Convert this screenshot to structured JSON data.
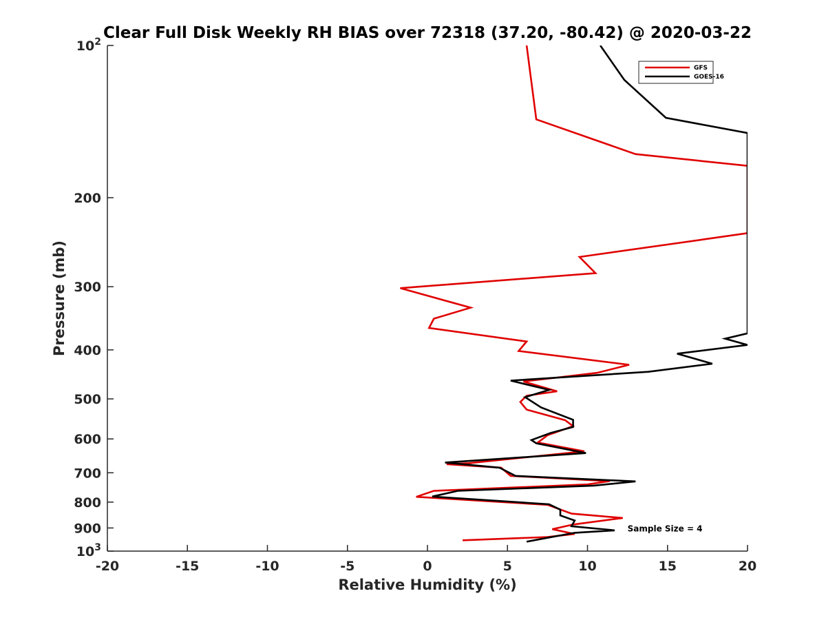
{
  "chart_data": {
    "type": "line",
    "title": "Clear Full Disk Weekly RH BIAS over 72318 (37.20, -80.42) @ 2020-03-22",
    "xlabel": "Relative Humidity (%)",
    "ylabel": "Pressure (mb)",
    "xlim": [
      -20,
      20
    ],
    "ylim": [
      100,
      1000
    ],
    "y_scale": "log",
    "y_reversed": true,
    "x_ticks": [
      -20,
      -15,
      -10,
      -5,
      0,
      5,
      10,
      15,
      20
    ],
    "x_tick_labels": [
      "-20",
      "-15",
      "-10",
      "-5",
      "0",
      "5",
      "10",
      "15",
      "20"
    ],
    "y_ticks": [
      200,
      300,
      400,
      500,
      600,
      700,
      800,
      900
    ],
    "y_tick_labels": [
      "200",
      "300",
      "400",
      "500",
      "600",
      "700",
      "800",
      "900"
    ],
    "y_power_labels": [
      {
        "value": 100,
        "base": "10",
        "exp": "2"
      },
      {
        "value": 1000,
        "base": "10",
        "exp": "3"
      }
    ],
    "grid": false,
    "legend_position": "top-right",
    "series": [
      {
        "name": "GFS",
        "color": "#e00000",
        "points": [
          [
            6.2,
            100
          ],
          [
            6.8,
            140
          ],
          [
            13.0,
            164
          ],
          [
            20.0,
            173
          ],
          [
            20.0,
            179
          ],
          [
            20.0,
            235
          ],
          [
            17.2,
            242
          ],
          [
            9.5,
            262
          ],
          [
            10.5,
            282
          ],
          [
            -1.7,
            302
          ],
          [
            2.7,
            330
          ],
          [
            0.4,
            347
          ],
          [
            0.1,
            362
          ],
          [
            6.2,
            385
          ],
          [
            5.7,
            402
          ],
          [
            12.6,
            428
          ],
          [
            10.6,
            444
          ],
          [
            6.0,
            462
          ],
          [
            8.1,
            483
          ],
          [
            6.2,
            493
          ],
          [
            5.8,
            507
          ],
          [
            6.2,
            525
          ],
          [
            8.6,
            551
          ],
          [
            9.1,
            566
          ],
          [
            7.5,
            590
          ],
          [
            6.9,
            610
          ],
          [
            9.8,
            635
          ],
          [
            2.6,
            670
          ],
          [
            1.2,
            673
          ],
          [
            4.6,
            684
          ],
          [
            5.2,
            710
          ],
          [
            11.4,
            727
          ],
          [
            10.0,
            738
          ],
          [
            0.4,
            760
          ],
          [
            -0.7,
            781
          ],
          [
            7.5,
            810
          ],
          [
            9.0,
            843
          ],
          [
            12.2,
            860
          ],
          [
            9.1,
            886
          ],
          [
            7.8,
            905
          ],
          [
            9.2,
            925
          ],
          [
            7.5,
            938
          ],
          [
            2.2,
            952
          ]
        ]
      },
      {
        "name": "GOES-16",
        "color": "#000000",
        "points": [
          [
            10.8,
            100
          ],
          [
            12.3,
            117
          ],
          [
            14.9,
            139
          ],
          [
            20.0,
            149
          ],
          [
            20.0,
            371
          ],
          [
            18.6,
            380
          ],
          [
            20.0,
            391
          ],
          [
            15.6,
            407
          ],
          [
            17.8,
            426
          ],
          [
            13.8,
            442
          ],
          [
            5.2,
            460
          ],
          [
            7.6,
            480
          ],
          [
            6.1,
            496
          ],
          [
            7.1,
            520
          ],
          [
            9.1,
            550
          ],
          [
            9.1,
            568
          ],
          [
            7.7,
            584
          ],
          [
            6.5,
            603
          ],
          [
            6.8,
            612
          ],
          [
            9.9,
            640
          ],
          [
            1.1,
            668
          ],
          [
            4.5,
            684
          ],
          [
            5.5,
            710
          ],
          [
            13.0,
            728
          ],
          [
            10.4,
            742
          ],
          [
            1.9,
            760
          ],
          [
            0.3,
            780
          ],
          [
            7.6,
            808
          ],
          [
            8.3,
            828
          ],
          [
            8.3,
            850
          ],
          [
            9.2,
            870
          ],
          [
            9.0,
            893
          ],
          [
            11.7,
            910
          ],
          [
            9.2,
            920
          ],
          [
            6.2,
            958
          ]
        ]
      }
    ],
    "annotations": [
      {
        "text": "Sample Size = 4",
        "x": 12.5,
        "y": 900
      }
    ]
  }
}
